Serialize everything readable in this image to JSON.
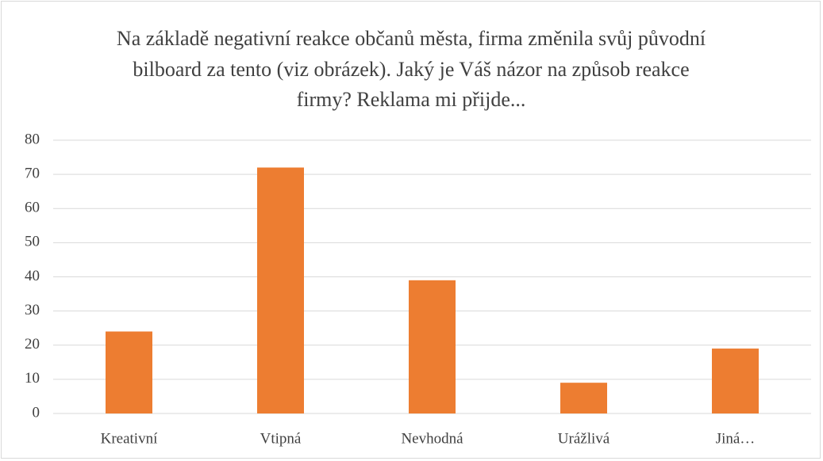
{
  "chart_data": {
    "type": "bar",
    "title": "Na základě negativní reakce občanů města, firma změnila svůj původní bilboard za tento (viz obrázek). Jaký je Váš názor na způsob reakce firmy? Reklama mi přijde...",
    "categories": [
      "Kreativní",
      "Vtipná",
      "Nevhodná",
      "Urážlivá",
      "Jiná…"
    ],
    "values": [
      24,
      72,
      39,
      9,
      19
    ],
    "color": "#ed7d31",
    "ylim": [
      0,
      80
    ],
    "yticks": [
      0,
      10,
      20,
      30,
      40,
      50,
      60,
      70,
      80
    ],
    "grid": true
  }
}
